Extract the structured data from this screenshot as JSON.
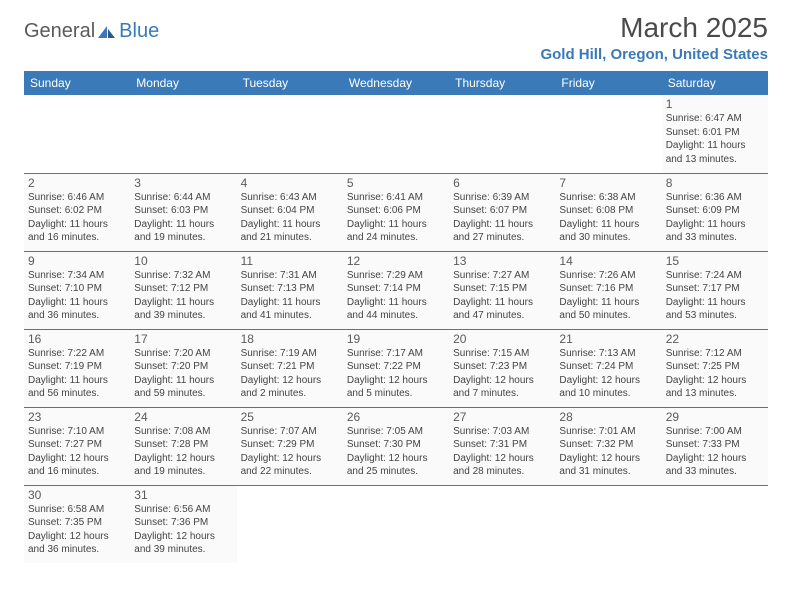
{
  "logo": {
    "word1": "General",
    "word2": "Blue"
  },
  "title": "March 2025",
  "location": "Gold Hill, Oregon, United States",
  "colors": {
    "header_bg": "#3a7ab8",
    "header_text": "#ffffff",
    "accent": "#3a7ab8",
    "body_text": "#444444",
    "page_bg": "#ffffff",
    "cell_bg": "#fafafa"
  },
  "weekdays": [
    "Sunday",
    "Monday",
    "Tuesday",
    "Wednesday",
    "Thursday",
    "Friday",
    "Saturday"
  ],
  "grid": {
    "first_weekday_index": 6,
    "num_days": 31
  },
  "days": {
    "1": {
      "sunrise": "6:47 AM",
      "sunset": "6:01 PM",
      "daylight": "11 hours and 13 minutes."
    },
    "2": {
      "sunrise": "6:46 AM",
      "sunset": "6:02 PM",
      "daylight": "11 hours and 16 minutes."
    },
    "3": {
      "sunrise": "6:44 AM",
      "sunset": "6:03 PM",
      "daylight": "11 hours and 19 minutes."
    },
    "4": {
      "sunrise": "6:43 AM",
      "sunset": "6:04 PM",
      "daylight": "11 hours and 21 minutes."
    },
    "5": {
      "sunrise": "6:41 AM",
      "sunset": "6:06 PM",
      "daylight": "11 hours and 24 minutes."
    },
    "6": {
      "sunrise": "6:39 AM",
      "sunset": "6:07 PM",
      "daylight": "11 hours and 27 minutes."
    },
    "7": {
      "sunrise": "6:38 AM",
      "sunset": "6:08 PM",
      "daylight": "11 hours and 30 minutes."
    },
    "8": {
      "sunrise": "6:36 AM",
      "sunset": "6:09 PM",
      "daylight": "11 hours and 33 minutes."
    },
    "9": {
      "sunrise": "7:34 AM",
      "sunset": "7:10 PM",
      "daylight": "11 hours and 36 minutes."
    },
    "10": {
      "sunrise": "7:32 AM",
      "sunset": "7:12 PM",
      "daylight": "11 hours and 39 minutes."
    },
    "11": {
      "sunrise": "7:31 AM",
      "sunset": "7:13 PM",
      "daylight": "11 hours and 41 minutes."
    },
    "12": {
      "sunrise": "7:29 AM",
      "sunset": "7:14 PM",
      "daylight": "11 hours and 44 minutes."
    },
    "13": {
      "sunrise": "7:27 AM",
      "sunset": "7:15 PM",
      "daylight": "11 hours and 47 minutes."
    },
    "14": {
      "sunrise": "7:26 AM",
      "sunset": "7:16 PM",
      "daylight": "11 hours and 50 minutes."
    },
    "15": {
      "sunrise": "7:24 AM",
      "sunset": "7:17 PM",
      "daylight": "11 hours and 53 minutes."
    },
    "16": {
      "sunrise": "7:22 AM",
      "sunset": "7:19 PM",
      "daylight": "11 hours and 56 minutes."
    },
    "17": {
      "sunrise": "7:20 AM",
      "sunset": "7:20 PM",
      "daylight": "11 hours and 59 minutes."
    },
    "18": {
      "sunrise": "7:19 AM",
      "sunset": "7:21 PM",
      "daylight": "12 hours and 2 minutes."
    },
    "19": {
      "sunrise": "7:17 AM",
      "sunset": "7:22 PM",
      "daylight": "12 hours and 5 minutes."
    },
    "20": {
      "sunrise": "7:15 AM",
      "sunset": "7:23 PM",
      "daylight": "12 hours and 7 minutes."
    },
    "21": {
      "sunrise": "7:13 AM",
      "sunset": "7:24 PM",
      "daylight": "12 hours and 10 minutes."
    },
    "22": {
      "sunrise": "7:12 AM",
      "sunset": "7:25 PM",
      "daylight": "12 hours and 13 minutes."
    },
    "23": {
      "sunrise": "7:10 AM",
      "sunset": "7:27 PM",
      "daylight": "12 hours and 16 minutes."
    },
    "24": {
      "sunrise": "7:08 AM",
      "sunset": "7:28 PM",
      "daylight": "12 hours and 19 minutes."
    },
    "25": {
      "sunrise": "7:07 AM",
      "sunset": "7:29 PM",
      "daylight": "12 hours and 22 minutes."
    },
    "26": {
      "sunrise": "7:05 AM",
      "sunset": "7:30 PM",
      "daylight": "12 hours and 25 minutes."
    },
    "27": {
      "sunrise": "7:03 AM",
      "sunset": "7:31 PM",
      "daylight": "12 hours and 28 minutes."
    },
    "28": {
      "sunrise": "7:01 AM",
      "sunset": "7:32 PM",
      "daylight": "12 hours and 31 minutes."
    },
    "29": {
      "sunrise": "7:00 AM",
      "sunset": "7:33 PM",
      "daylight": "12 hours and 33 minutes."
    },
    "30": {
      "sunrise": "6:58 AM",
      "sunset": "7:35 PM",
      "daylight": "12 hours and 36 minutes."
    },
    "31": {
      "sunrise": "6:56 AM",
      "sunset": "7:36 PM",
      "daylight": "12 hours and 39 minutes."
    }
  },
  "labels": {
    "sunrise": "Sunrise:",
    "sunset": "Sunset:",
    "daylight": "Daylight:"
  }
}
